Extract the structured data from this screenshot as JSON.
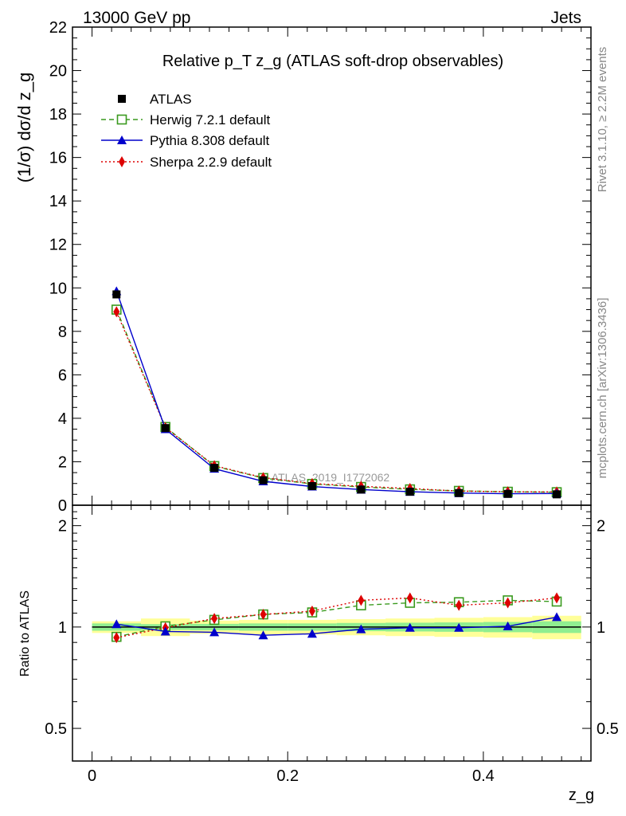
{
  "header": {
    "energy_label": "13000 GeV pp",
    "process_label": "Jets"
  },
  "side_labels": {
    "rivet": "Rivet 3.1.10, ≥ 2.2M events",
    "mcplots": "mcplots.cern.ch [arXiv:1306.3436]"
  },
  "watermark": "ATLAS_2019_I1772062",
  "colors": {
    "atlas": "#000000",
    "herwig": "#3a9a1e",
    "pythia": "#0000cc",
    "sherpa": "#dd0000",
    "band_inner": "#90ee90",
    "band_outer": "#ffff99"
  },
  "chart_data": [
    {
      "type": "line",
      "title": "Relative p_T z_g (ATLAS soft-drop observables)",
      "ylabel": "(1/σ) dσ/d z_g",
      "xlabel": "z_g",
      "xlim": [
        -0.02,
        0.51
      ],
      "ylim": [
        0,
        22
      ],
      "yticks": [
        0,
        2,
        4,
        6,
        8,
        10,
        12,
        14,
        16,
        18,
        20,
        22
      ],
      "legend_position": "top-left",
      "x": [
        0.025,
        0.075,
        0.125,
        0.175,
        0.225,
        0.275,
        0.325,
        0.375,
        0.425,
        0.475
      ],
      "series": [
        {
          "name": "ATLAS",
          "style": "marker",
          "values": [
            9.7,
            3.55,
            1.72,
            1.15,
            0.88,
            0.72,
            0.62,
            0.56,
            0.52,
            0.5
          ]
        },
        {
          "name": "Herwig 7.2.1 default",
          "style": "dashed-open-square",
          "values": [
            9.0,
            3.6,
            1.8,
            1.25,
            0.98,
            0.84,
            0.73,
            0.66,
            0.62,
            0.6
          ]
        },
        {
          "name": "Pythia 8.308 default",
          "style": "solid-triangle",
          "values": [
            9.85,
            3.5,
            1.68,
            1.1,
            0.86,
            0.72,
            0.62,
            0.56,
            0.53,
            0.54
          ]
        },
        {
          "name": "Sherpa 2.2.9 default",
          "style": "dotted-diamond",
          "values": [
            8.9,
            3.57,
            1.82,
            1.27,
            1.0,
            0.87,
            0.77,
            0.65,
            0.62,
            0.61
          ]
        }
      ]
    },
    {
      "type": "line",
      "ylabel": "Ratio to ATLAS",
      "xlabel": "z_g",
      "xlim": [
        -0.02,
        0.51
      ],
      "ylim": [
        0.4,
        2.3
      ],
      "y_scale": "log",
      "yticks": [
        0.5,
        1,
        2
      ],
      "xticks": [
        0,
        0.2,
        0.4
      ],
      "x": [
        0.025,
        0.075,
        0.125,
        0.175,
        0.225,
        0.275,
        0.325,
        0.375,
        0.425,
        0.475
      ],
      "bands": {
        "inner": [
          0.025,
          0.02,
          0.022,
          0.025,
          0.025,
          0.028,
          0.03,
          0.032,
          0.035,
          0.04
        ],
        "outer": [
          0.04,
          0.06,
          0.045,
          0.05,
          0.05,
          0.055,
          0.06,
          0.065,
          0.07,
          0.08
        ]
      },
      "series": [
        {
          "name": "Herwig 7.2.1 default",
          "values": [
            0.935,
            1.005,
            1.05,
            1.09,
            1.105,
            1.16,
            1.18,
            1.185,
            1.2,
            1.19
          ]
        },
        {
          "name": "Pythia 8.308 default",
          "values": [
            1.02,
            0.97,
            0.965,
            0.945,
            0.955,
            0.985,
            0.995,
            0.995,
            1.005,
            1.07
          ]
        },
        {
          "name": "Sherpa 2.2.9 default",
          "values": [
            0.93,
            0.995,
            1.06,
            1.09,
            1.115,
            1.2,
            1.22,
            1.16,
            1.18,
            1.22
          ]
        }
      ]
    }
  ]
}
